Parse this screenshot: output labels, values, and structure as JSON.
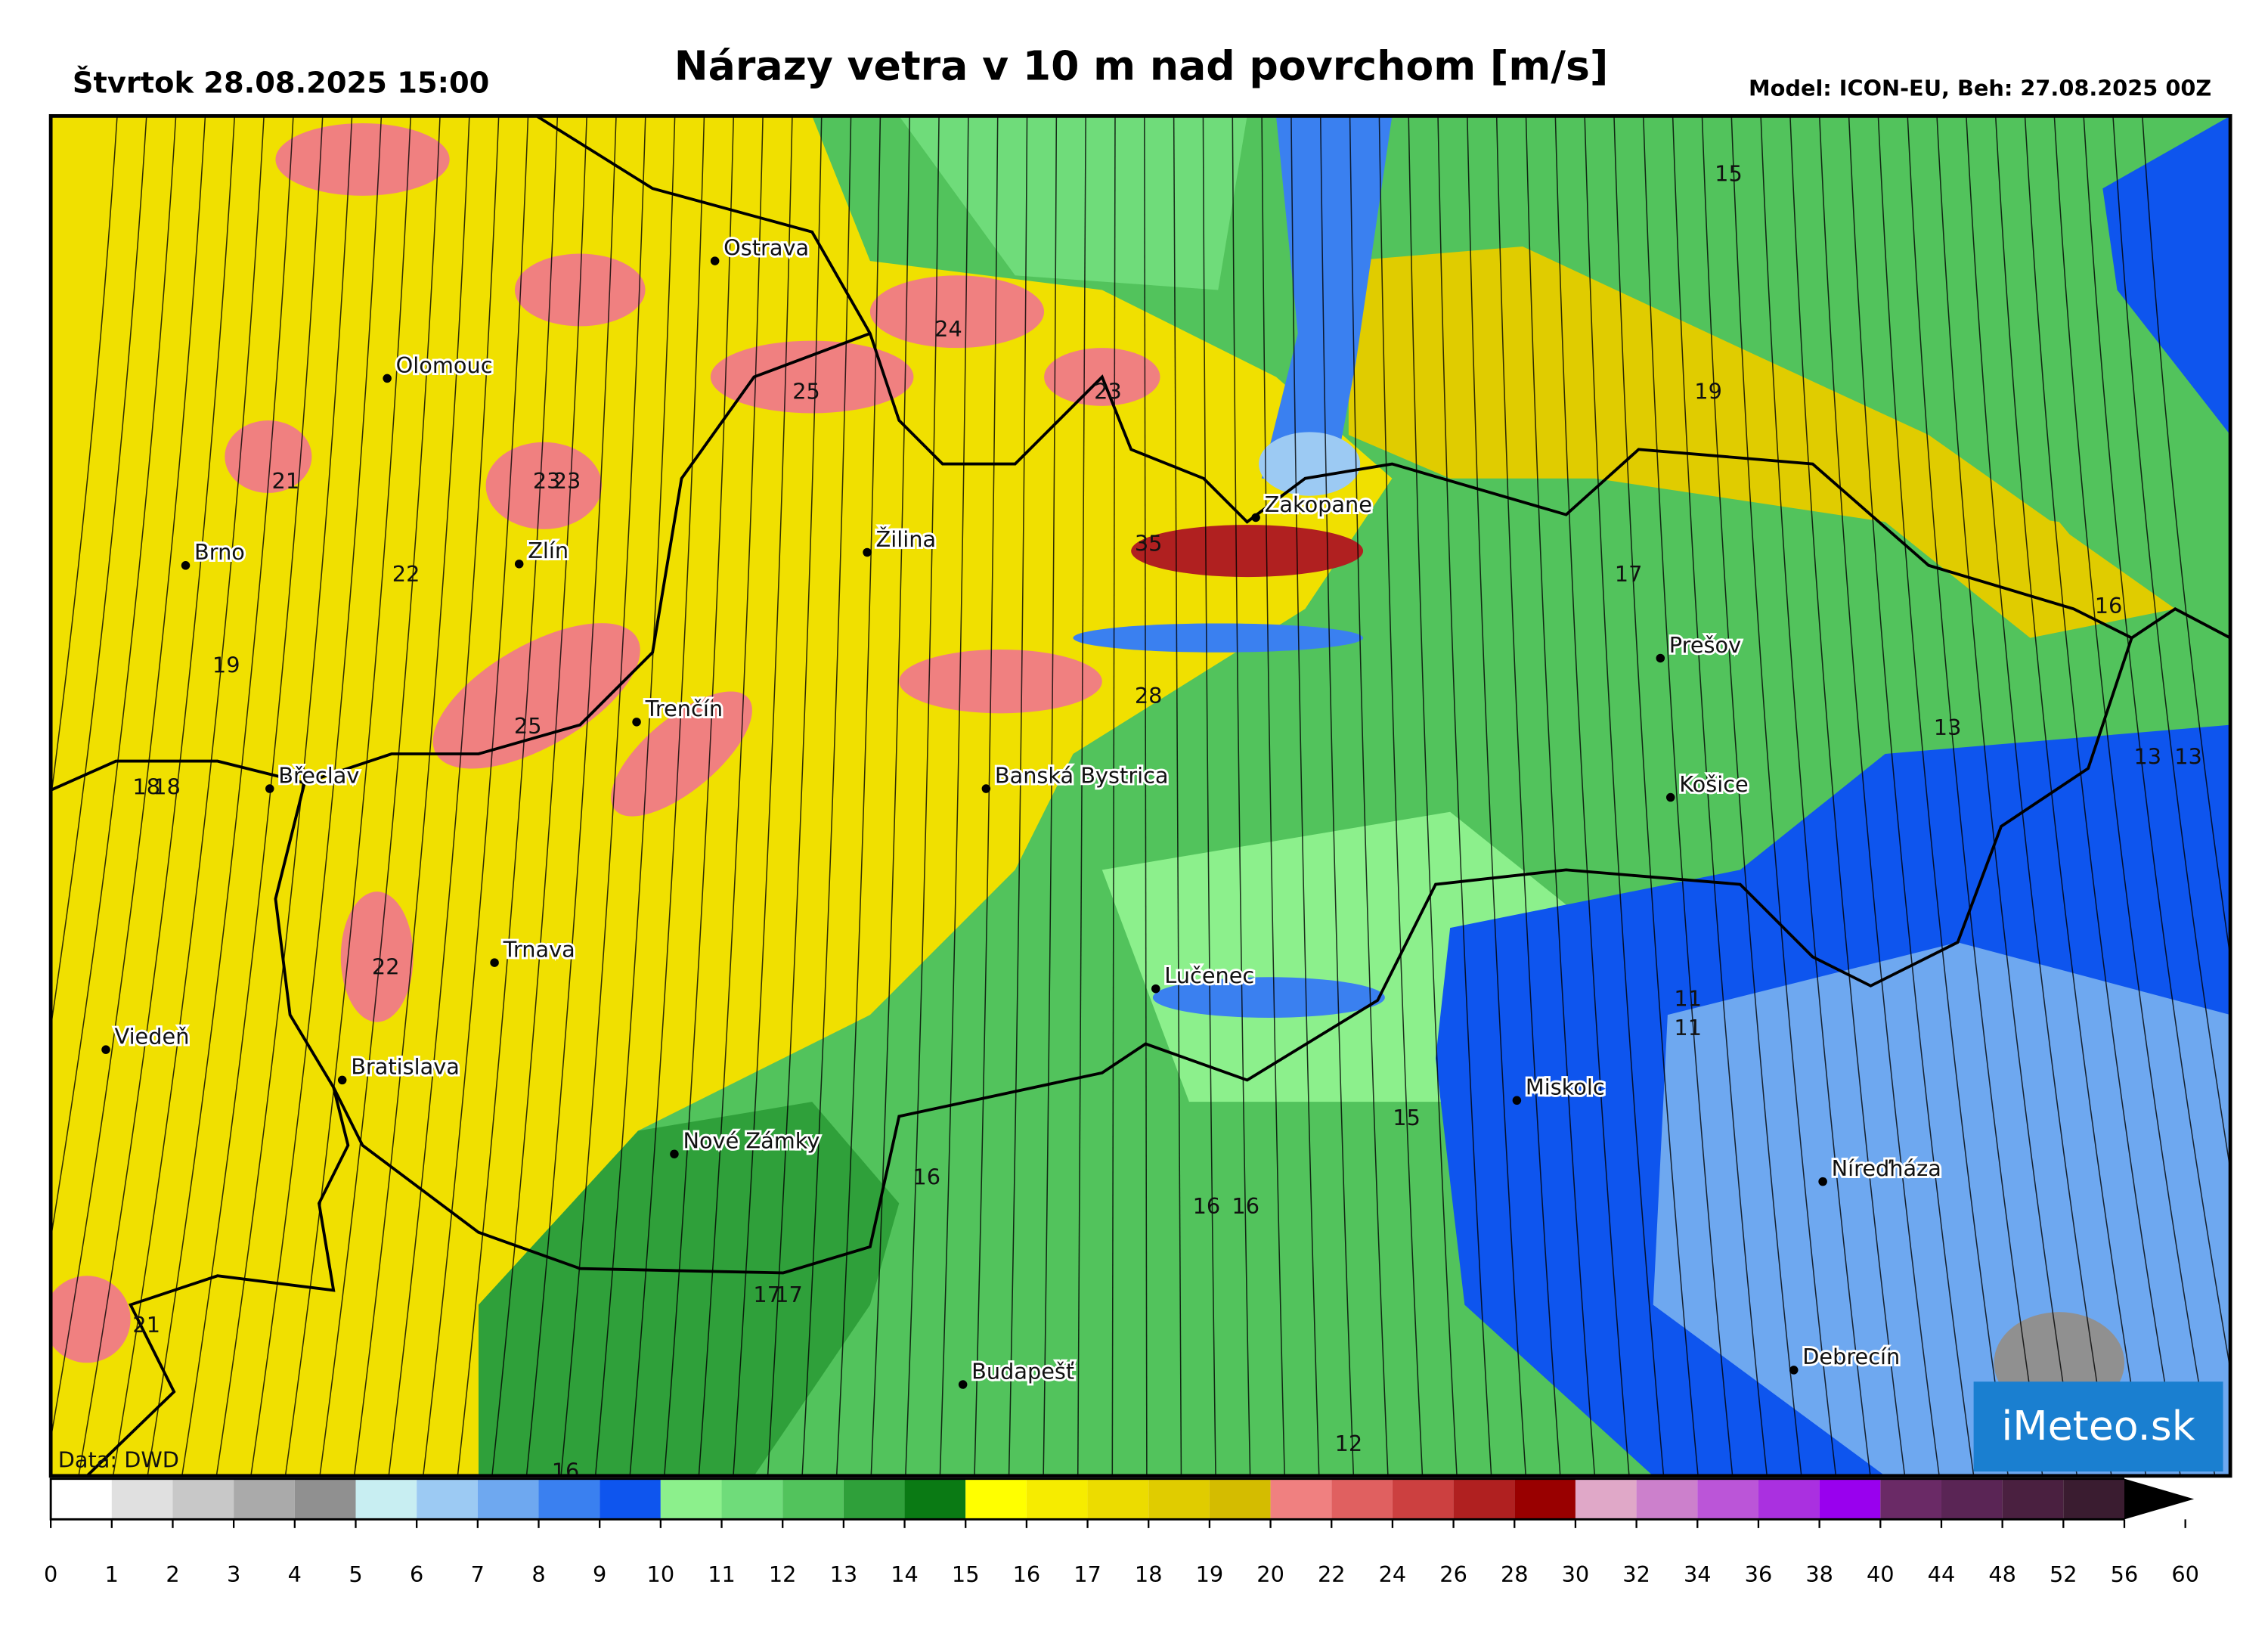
{
  "header": {
    "date": "Štvrtok 28.08.2025 15:00",
    "title": "Nárazy vetra v 10 m nad povrchom [m/s]",
    "model": "Model: ICON-EU, Beh: 27.08.2025 00Z"
  },
  "map": {
    "cities": [
      "Ostrava",
      "Olomouc",
      "Brno",
      "Zlín",
      "Žilina",
      "Zakopane",
      "Prešov",
      "Košice",
      "Trenčín",
      "Banská Bystrica",
      "Břeclav",
      "Trnava",
      "Lučenec",
      "Viedeň",
      "Bratislava",
      "Nové Zámky",
      "Miskolc",
      "Níreďháza",
      "Debrecín",
      "Budapešť"
    ],
    "value_labels": [
      15,
      24,
      25,
      23,
      19,
      21,
      23,
      23,
      22,
      35,
      17,
      16,
      19,
      28,
      13,
      25,
      18,
      18,
      13,
      13,
      11,
      11,
      22,
      15,
      16,
      16,
      16,
      17,
      17,
      21,
      12,
      16
    ],
    "credit": "Data: DWD",
    "logo": "iMeteo.sk"
  },
  "colorbar": {
    "ticks": [
      0,
      1,
      2,
      3,
      4,
      5,
      6,
      7,
      8,
      9,
      10,
      11,
      12,
      13,
      14,
      15,
      16,
      17,
      18,
      19,
      20,
      22,
      24,
      26,
      28,
      30,
      32,
      34,
      36,
      38,
      40,
      44,
      48,
      52,
      56,
      60
    ],
    "colors": [
      "#ffffff",
      "#e0e0e0",
      "#c8c8c8",
      "#aaaaaa",
      "#909090",
      "#c8eef2",
      "#9ccaf3",
      "#6ea8f0",
      "#3a80f0",
      "#0e55ee",
      "#8cf08c",
      "#6fdc7a",
      "#52c35c",
      "#2fa03a",
      "#0a7a14",
      "#ffff00",
      "#f6ec00",
      "#ecdc00",
      "#e0cc00",
      "#d4bc00",
      "#f08080",
      "#e06060",
      "#cc4040",
      "#b02020",
      "#990000",
      "#e0a8c8",
      "#cc80cc",
      "#bb55d8",
      "#aa30e0",
      "#9900ee",
      "#6a2a66",
      "#5a2555",
      "#4a2040",
      "#3a1c30",
      "#000000"
    ]
  }
}
